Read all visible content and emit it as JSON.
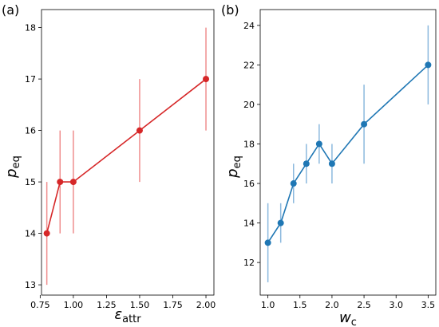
{
  "chart_data": [
    {
      "type": "line",
      "panel_label": "(a)",
      "xlabel": "ε",
      "xlabel_sub": "attr",
      "ylabel": "p",
      "ylabel_sub": "eq",
      "xlim": [
        0.76,
        2.06
      ],
      "ylim": [
        12.8,
        18.35
      ],
      "xticks": [
        0.75,
        1.0,
        1.25,
        1.5,
        1.75,
        2.0
      ],
      "xtick_labels": [
        "0.75",
        "1.00",
        "1.25",
        "1.50",
        "1.75",
        "2.00"
      ],
      "yticks": [
        13,
        14,
        15,
        16,
        17,
        18
      ],
      "ytick_labels": [
        "13",
        "14",
        "15",
        "16",
        "17",
        "18"
      ],
      "series": [
        {
          "x": [
            0.8,
            0.9,
            1.0,
            1.5,
            2.0
          ],
          "y": [
            14,
            15,
            15,
            16,
            17
          ],
          "yerr": [
            1,
            1,
            1,
            1,
            1
          ],
          "color": "#d62728",
          "errcolor": "#ef8e8e"
        }
      ],
      "grid": false,
      "legend": "none"
    },
    {
      "type": "line",
      "panel_label": "(b)",
      "xlabel": "w",
      "xlabel_sub": "c",
      "ylabel": "p",
      "ylabel_sub": "eq",
      "xlim": [
        0.88,
        3.62
      ],
      "ylim": [
        10.35,
        24.8
      ],
      "xticks": [
        1.0,
        1.5,
        2.0,
        2.5,
        3.0,
        3.5
      ],
      "xtick_labels": [
        "1.0",
        "1.5",
        "2.0",
        "2.5",
        "3.0",
        "3.5"
      ],
      "yticks": [
        12,
        14,
        16,
        18,
        20,
        22,
        24
      ],
      "ytick_labels": [
        "12",
        "14",
        "16",
        "18",
        "20",
        "22",
        "24"
      ],
      "series": [
        {
          "x": [
            1.0,
            1.2,
            1.4,
            1.6,
            1.8,
            2.0,
            2.5,
            3.5
          ],
          "y": [
            13,
            14,
            16,
            17,
            18,
            17,
            19,
            22
          ],
          "yerr": [
            2,
            1,
            1,
            1,
            1,
            1,
            2,
            2
          ],
          "color": "#1f77b4",
          "errcolor": "#8cb9de"
        }
      ],
      "grid": false,
      "legend": "none"
    }
  ]
}
